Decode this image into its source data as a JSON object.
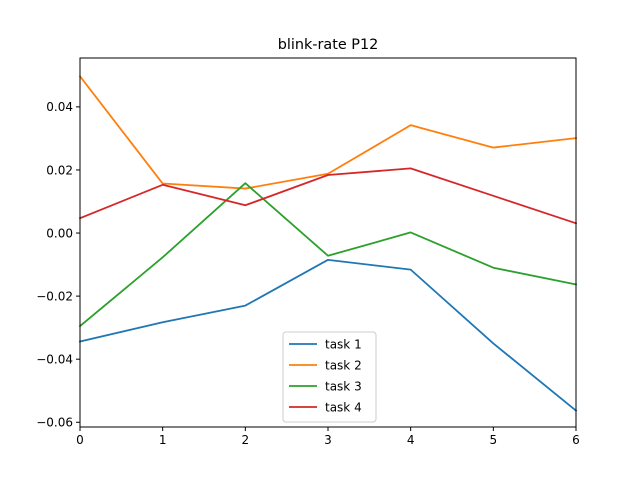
{
  "chart_data": {
    "type": "line",
    "title": "blink-rate P12",
    "xlabel": "",
    "ylabel": "",
    "x": [
      0,
      1,
      2,
      3,
      4,
      5,
      6
    ],
    "xlim": [
      0,
      6
    ],
    "ylim": [
      -0.0615,
      0.0555
    ],
    "x_ticks": [
      0,
      1,
      2,
      3,
      4,
      5,
      6
    ],
    "x_tick_labels": [
      "0",
      "1",
      "2",
      "3",
      "4",
      "5",
      "6"
    ],
    "y_ticks": [
      -0.06,
      -0.04,
      -0.02,
      0.0,
      0.02,
      0.04
    ],
    "y_tick_labels": [
      "−0.06",
      "−0.04",
      "−0.02",
      "0.00",
      "0.02",
      "0.04"
    ],
    "grid": false,
    "legend_position": "lower-center",
    "series": [
      {
        "name": "task 1",
        "color": "#1f77b4",
        "values": [
          -0.0344,
          -0.0283,
          -0.023,
          -0.0085,
          -0.0116,
          -0.035,
          -0.0563
        ]
      },
      {
        "name": "task 2",
        "color": "#ff7f0e",
        "values": [
          0.0497,
          0.0157,
          0.0141,
          0.0188,
          0.0342,
          0.0271,
          0.0301
        ]
      },
      {
        "name": "task 3",
        "color": "#2ca02c",
        "values": [
          -0.0295,
          -0.0077,
          0.0158,
          -0.0072,
          0.0002,
          -0.011,
          -0.0163
        ]
      },
      {
        "name": "task 4",
        "color": "#d62728",
        "values": [
          0.0047,
          0.0153,
          0.0088,
          0.0184,
          0.0205,
          0.0118,
          0.0031
        ]
      }
    ]
  }
}
